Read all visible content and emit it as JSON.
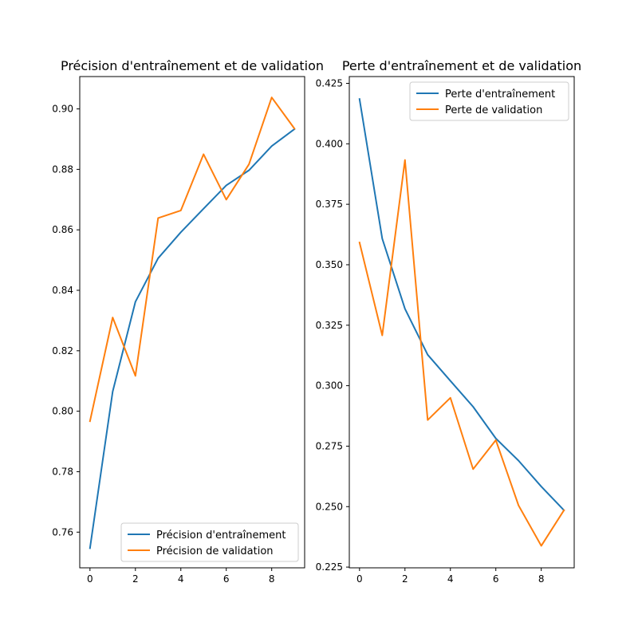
{
  "chart_data": [
    {
      "type": "line",
      "title": "Précision d'entraînement et de validation",
      "xlabel": "",
      "ylabel": "",
      "x": [
        0,
        1,
        2,
        3,
        4,
        5,
        6,
        7,
        8,
        9
      ],
      "xlim": [
        -0.45,
        9.45
      ],
      "ylim": [
        0.7482,
        0.9107
      ],
      "xticks": [
        0,
        2,
        4,
        6,
        8
      ],
      "yticks": [
        0.76,
        0.78,
        0.8,
        0.82,
        0.84,
        0.86,
        0.88,
        0.9
      ],
      "ytick_labels": [
        "0.76",
        "0.78",
        "0.80",
        "0.82",
        "0.84",
        "0.86",
        "0.88",
        "0.90"
      ],
      "legend_position": "lower-right",
      "grid": false,
      "series": [
        {
          "name": "Précision d'entraînement",
          "color": "#1f77b4",
          "values": [
            0.7547,
            0.8065,
            0.8362,
            0.8506,
            0.8592,
            0.867,
            0.8747,
            0.8797,
            0.8877,
            0.8933
          ]
        },
        {
          "name": "Précision de validation",
          "color": "#ff7f0e",
          "values": [
            0.7967,
            0.831,
            0.8117,
            0.8639,
            0.8664,
            0.885,
            0.87,
            0.8817,
            0.9038,
            0.8935
          ]
        }
      ]
    },
    {
      "type": "line",
      "title": "Perte d'entraînement et de validation",
      "xlabel": "",
      "ylabel": "",
      "x": [
        0,
        1,
        2,
        3,
        4,
        5,
        6,
        7,
        8,
        9
      ],
      "xlim": [
        -0.45,
        9.45
      ],
      "ylim": [
        0.2247,
        0.4278
      ],
      "xticks": [
        0,
        2,
        4,
        6,
        8
      ],
      "yticks": [
        0.225,
        0.25,
        0.275,
        0.3,
        0.325,
        0.35,
        0.375,
        0.4,
        0.425
      ],
      "ytick_labels": [
        "0.225",
        "0.250",
        "0.275",
        "0.300",
        "0.325",
        "0.350",
        "0.375",
        "0.400",
        "0.425"
      ],
      "legend_position": "upper-right",
      "grid": false,
      "series": [
        {
          "name": "Perte d'entraînement",
          "color": "#1f77b4",
          "values": [
            0.4185,
            0.3608,
            0.3318,
            0.3128,
            0.302,
            0.2913,
            0.2782,
            0.269,
            0.2583,
            0.2485
          ]
        },
        {
          "name": "Perte de validation",
          "color": "#ff7f0e",
          "values": [
            0.3592,
            0.3208,
            0.3933,
            0.2858,
            0.295,
            0.2655,
            0.2775,
            0.2505,
            0.2338,
            0.2485
          ]
        }
      ]
    }
  ]
}
